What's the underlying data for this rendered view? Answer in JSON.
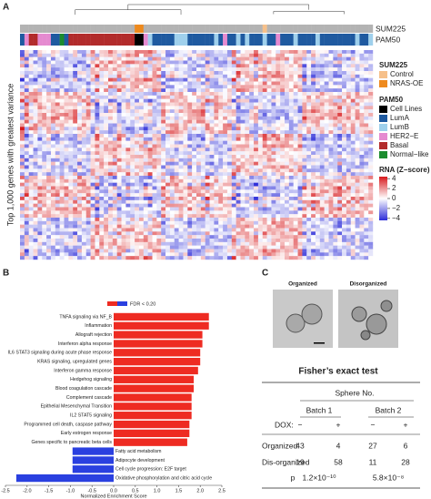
{
  "panel_a": {
    "label": "A",
    "y_label": "Top 1,000 genes with greatest variance",
    "row_labels": [
      "SUM225",
      "PAM50"
    ],
    "legend": [
      {
        "title": "SUM225",
        "items": [
          {
            "name": "Control",
            "color": "#f6c08a"
          },
          {
            "name": "NRAS-OE",
            "color": "#ee8a1e"
          }
        ]
      },
      {
        "title": "PAM50",
        "items": [
          {
            "name": "Cell Lines",
            "color": "#000000"
          },
          {
            "name": "LumA",
            "color": "#1f5aa0"
          },
          {
            "name": "LumB",
            "color": "#9fd0ec"
          },
          {
            "name": "HER2−E",
            "color": "#e58ad0"
          },
          {
            "name": "Basal",
            "color": "#b22b2b"
          },
          {
            "name": "Normal−like",
            "color": "#1b8c2e"
          }
        ]
      }
    ],
    "colorbar": {
      "title": "RNA (Z−score)",
      "lim": [
        -4.4,
        4.4
      ],
      "ticks": [
        4,
        2,
        0,
        {
          "value": -2,
          "label": "−2"
        },
        {
          "value": -4,
          "label": "−4"
        }
      ]
    }
  },
  "chart_data": {
    "type": "bar",
    "orientation": "horizontal",
    "panel_label": "B",
    "legend_label": "FDR < 0.20",
    "positive_color": "#ee2b22",
    "negative_color": "#2a40e0",
    "categories": [
      "TNFA signaling via NF_B",
      "Inflammation",
      "Allograft rejection",
      "Interferon alpha response",
      "IL6 STAT3 signaling during acute phase response",
      "KRAS signaling, upregulated genes",
      "Interferon gamma response",
      "Hedgehog signaling",
      "Blood coagulation cascade",
      "Complement cascade",
      "Epithelial Mesenchymal Transition",
      "IL2 STAT5 signaling",
      "Programmed cell death, caspase pathway",
      "Early estrogen response",
      "Genes specific to pancreatic beta cells",
      "Fatty acid metabolism",
      "Adipocyte development",
      "Cell cycle progression: E2F target",
      "Oxidative phosphorylation and citric acid cycle"
    ],
    "values": [
      2.2,
      2.2,
      2.05,
      2.05,
      2.0,
      2.0,
      1.95,
      1.85,
      1.85,
      1.8,
      1.8,
      1.8,
      1.75,
      1.75,
      1.7,
      -0.95,
      -0.95,
      -0.95,
      -2.25
    ],
    "xlim": [
      -2.5,
      2.5
    ],
    "xticks": [
      {
        "value": -2.5,
        "label": "-2.5"
      },
      {
        "value": -2,
        "label": "-2.0"
      },
      {
        "value": -1.5,
        "label": "-1.5"
      },
      {
        "value": -1,
        "label": "-1.0"
      },
      {
        "value": -0.5,
        "label": "-0.5"
      },
      {
        "value": 0,
        "label": "0.0"
      },
      0.5,
      {
        "value": 1,
        "label": "1.0"
      },
      1.5,
      {
        "value": 2,
        "label": "2.0"
      },
      2.5
    ],
    "x_label": "Normalized Enrichment Score"
  },
  "panel_c": {
    "label": "C",
    "images": [
      "Organized",
      "Disorganized"
    ],
    "table_title": "Fisher’s exact test",
    "group_header": "Sphere No.",
    "batches": [
      "Batch 1",
      "Batch 2"
    ],
    "dox_label": "DOX:",
    "dox": [
      "−",
      "+",
      "−",
      "+"
    ],
    "rows": [
      [
        "Organized",
        "43",
        "4",
        "27",
        "6"
      ],
      [
        "Dis-organized",
        "19",
        "58",
        "11",
        "28"
      ]
    ],
    "p_row": [
      "p",
      "1.2×10⁻¹⁰",
      "5.8×10⁻⁸"
    ]
  }
}
